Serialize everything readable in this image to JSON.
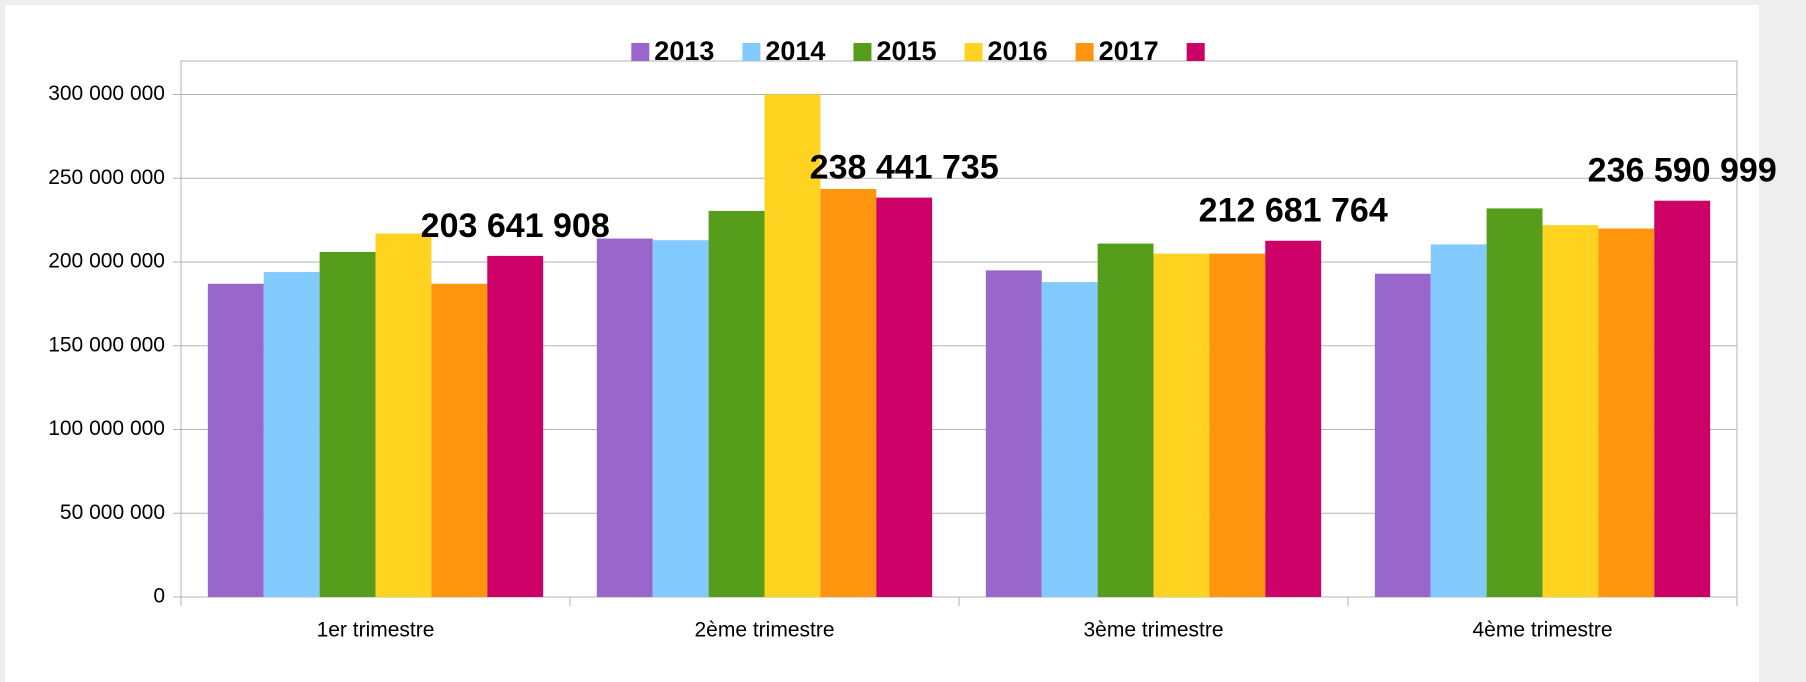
{
  "chart_data": {
    "type": "bar",
    "categories": [
      "1er trimestre",
      "2ème trimestre",
      "3ème trimestre",
      "4ème trimestre"
    ],
    "series": [
      {
        "name": "2013",
        "color": "#9966cc",
        "values": [
          187000000,
          214000000,
          195000000,
          193000000
        ]
      },
      {
        "name": "2014",
        "color": "#83caff",
        "values": [
          194000000,
          213000000,
          188000000,
          210500000
        ]
      },
      {
        "name": "2015",
        "color": "#579d1c",
        "values": [
          206000000,
          230500000,
          211000000,
          232000000
        ]
      },
      {
        "name": "2016",
        "color": "#ffd320",
        "values": [
          217000000,
          300000000,
          205000000,
          222000000
        ]
      },
      {
        "name": "2017",
        "color": "#ff950e",
        "values": [
          187000000,
          243600000,
          205000000,
          220000000
        ]
      },
      {
        "color": "#cc0066",
        "values": [
          203641908,
          238441735,
          212681764,
          236590999
        ],
        "value_labels": [
          "203 641 908",
          "238 441 735",
          "212 681 764",
          "236 590 999"
        ]
      }
    ],
    "ylim": [
      0,
      320000000
    ],
    "yticks": [
      0,
      {
        "value": 50000000,
        "label": "50 000 000"
      },
      {
        "value": 100000000,
        "label": "100 000 000"
      },
      {
        "value": 150000000,
        "label": "150 000 000"
      },
      {
        "value": 200000000,
        "label": "200 000 000"
      },
      {
        "value": 250000000,
        "label": "250 000 000"
      },
      {
        "value": 300000000,
        "label": "300 000 000"
      }
    ],
    "grid": true,
    "legend": "top"
  }
}
